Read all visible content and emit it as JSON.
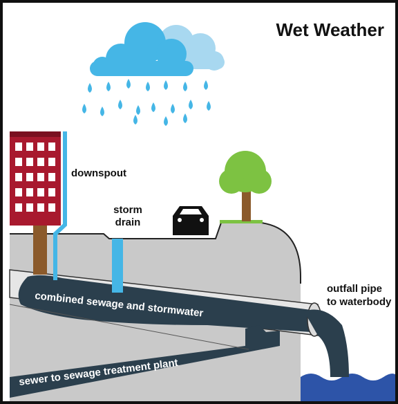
{
  "title": "Wet Weather",
  "labels": {
    "downspout": "downspout",
    "storm_drain": [
      "storm",
      "drain"
    ],
    "outfall": [
      "outfall pipe",
      "to waterbody"
    ],
    "combined": "combined sewage and stormwater",
    "sewer": "sewer to sewage treatment plant"
  }
}
